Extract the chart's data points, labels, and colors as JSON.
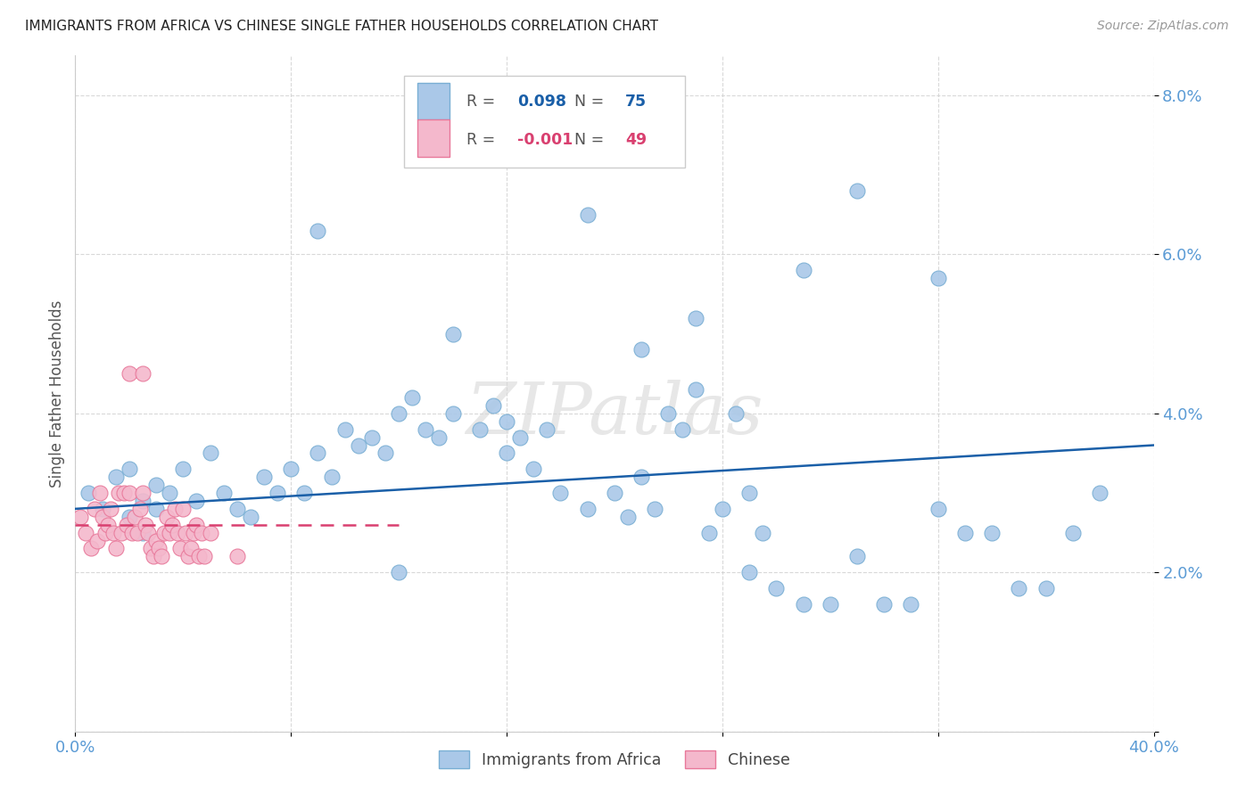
{
  "title": "IMMIGRANTS FROM AFRICA VS CHINESE SINGLE FATHER HOUSEHOLDS CORRELATION CHART",
  "source": "Source: ZipAtlas.com",
  "ylabel": "Single Father Households",
  "yticks": [
    0.0,
    0.02,
    0.04,
    0.06,
    0.08
  ],
  "ytick_labels": [
    "",
    "2.0%",
    "4.0%",
    "6.0%",
    "8.0%"
  ],
  "xlim": [
    0.0,
    0.4
  ],
  "ylim": [
    0.0,
    0.085
  ],
  "africa_R": "0.098",
  "africa_N": "75",
  "china_R": "-0.001",
  "china_N": "49",
  "africa_scatter_x": [
    0.005,
    0.01,
    0.015,
    0.02,
    0.02,
    0.025,
    0.025,
    0.03,
    0.03,
    0.035,
    0.04,
    0.045,
    0.05,
    0.055,
    0.06,
    0.065,
    0.07,
    0.075,
    0.08,
    0.085,
    0.09,
    0.095,
    0.1,
    0.105,
    0.11,
    0.115,
    0.12,
    0.125,
    0.13,
    0.135,
    0.14,
    0.15,
    0.155,
    0.16,
    0.165,
    0.17,
    0.175,
    0.18,
    0.19,
    0.2,
    0.205,
    0.21,
    0.215,
    0.22,
    0.225,
    0.23,
    0.235,
    0.24,
    0.245,
    0.25,
    0.255,
    0.26,
    0.27,
    0.28,
    0.29,
    0.3,
    0.31,
    0.32,
    0.33,
    0.34,
    0.35,
    0.36,
    0.37,
    0.38,
    0.29,
    0.23,
    0.19,
    0.14,
    0.09,
    0.21,
    0.27,
    0.32,
    0.16,
    0.25,
    0.12
  ],
  "africa_scatter_y": [
    0.03,
    0.028,
    0.032,
    0.027,
    0.033,
    0.029,
    0.025,
    0.031,
    0.028,
    0.03,
    0.033,
    0.029,
    0.035,
    0.03,
    0.028,
    0.027,
    0.032,
    0.03,
    0.033,
    0.03,
    0.035,
    0.032,
    0.038,
    0.036,
    0.037,
    0.035,
    0.04,
    0.042,
    0.038,
    0.037,
    0.04,
    0.038,
    0.041,
    0.035,
    0.037,
    0.033,
    0.038,
    0.03,
    0.028,
    0.03,
    0.027,
    0.032,
    0.028,
    0.04,
    0.038,
    0.043,
    0.025,
    0.028,
    0.04,
    0.03,
    0.025,
    0.018,
    0.016,
    0.016,
    0.022,
    0.016,
    0.016,
    0.028,
    0.025,
    0.025,
    0.018,
    0.018,
    0.025,
    0.03,
    0.068,
    0.052,
    0.065,
    0.05,
    0.063,
    0.048,
    0.058,
    0.057,
    0.039,
    0.02,
    0.02
  ],
  "china_scatter_x": [
    0.002,
    0.004,
    0.006,
    0.007,
    0.008,
    0.009,
    0.01,
    0.011,
    0.012,
    0.013,
    0.014,
    0.015,
    0.016,
    0.017,
    0.018,
    0.019,
    0.02,
    0.021,
    0.022,
    0.023,
    0.024,
    0.025,
    0.026,
    0.027,
    0.028,
    0.029,
    0.03,
    0.031,
    0.032,
    0.033,
    0.034,
    0.035,
    0.036,
    0.037,
    0.038,
    0.039,
    0.04,
    0.041,
    0.042,
    0.043,
    0.044,
    0.045,
    0.046,
    0.047,
    0.048,
    0.05,
    0.06,
    0.02,
    0.025
  ],
  "china_scatter_y": [
    0.027,
    0.025,
    0.023,
    0.028,
    0.024,
    0.03,
    0.027,
    0.025,
    0.026,
    0.028,
    0.025,
    0.023,
    0.03,
    0.025,
    0.03,
    0.026,
    0.03,
    0.025,
    0.027,
    0.025,
    0.028,
    0.03,
    0.026,
    0.025,
    0.023,
    0.022,
    0.024,
    0.023,
    0.022,
    0.025,
    0.027,
    0.025,
    0.026,
    0.028,
    0.025,
    0.023,
    0.028,
    0.025,
    0.022,
    0.023,
    0.025,
    0.026,
    0.022,
    0.025,
    0.022,
    0.025,
    0.022,
    0.045,
    0.045
  ],
  "africa_line_x": [
    0.0,
    0.4
  ],
  "africa_line_y": [
    0.028,
    0.036
  ],
  "china_line_x": [
    0.0,
    0.12
  ],
  "china_line_y": [
    0.026,
    0.026
  ],
  "watermark": "ZIPatlas",
  "africa_dot_color": "#aac8e8",
  "africa_edge_color": "#7aafd4",
  "china_dot_color": "#f4b8cc",
  "china_edge_color": "#e8789a",
  "africa_line_color": "#1a5fa8",
  "china_line_color": "#d94070",
  "axis_tick_color": "#5b9bd5",
  "grid_color": "#d0d0d0",
  "title_color": "#222222",
  "source_color": "#999999",
  "ylabel_color": "#555555",
  "legend_box_color": "#cccccc",
  "legend_R_label_color": "#555555",
  "legend_africa_val_color": "#1a5fa8",
  "legend_china_val_color": "#d94070"
}
